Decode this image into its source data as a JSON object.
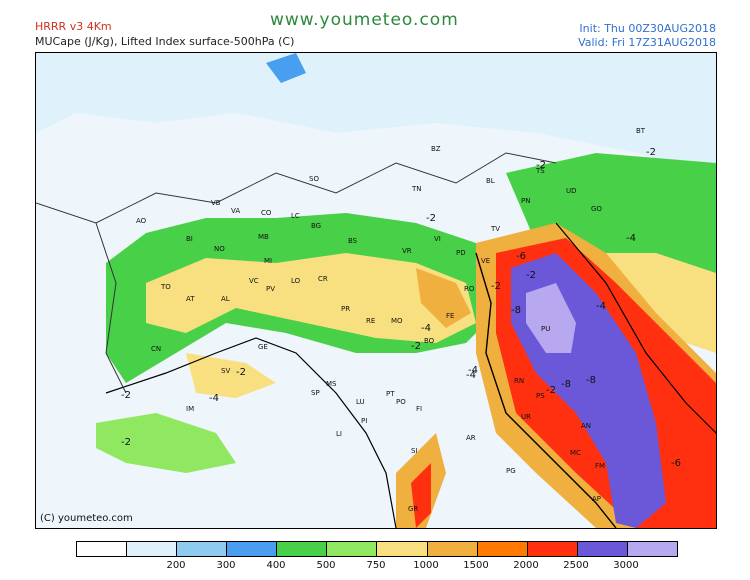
{
  "header": {
    "model": "HRRR v3 4Km",
    "parameter": "MUCape (J/Kg), Lifted Index surface-500hPa (C)",
    "site": "www.youmeteo.com",
    "init": "Init: Thu 00Z30AUG2018",
    "valid": "Valid: Fri 17Z31AUG2018"
  },
  "map": {
    "copyright": "(C) youmeteo.com",
    "province_labels": [
      "BZ",
      "SO",
      "TN",
      "BL",
      "PN",
      "UD",
      "GO",
      "VB",
      "VA",
      "CO",
      "LC",
      "BG",
      "BS",
      "BI",
      "NO",
      "MB",
      "MI",
      "VR",
      "VI",
      "TV",
      "PD",
      "VE",
      "RO",
      "FE",
      "BO",
      "MO",
      "RE",
      "PR",
      "CR",
      "LO",
      "PV",
      "AL",
      "AT",
      "TO",
      "CN",
      "SV",
      "GE",
      "IM",
      "SP",
      "MS",
      "LU",
      "PT",
      "PO",
      "FI",
      "PI",
      "LI",
      "SI",
      "AR",
      "PG",
      "PU",
      "AN",
      "RN",
      "PS",
      "UR",
      "MC",
      "FM",
      "AP",
      "GR",
      "AO",
      "TS",
      "VC",
      "BT"
    ],
    "li_labels": [
      "-2",
      "-2",
      "-2",
      "-2",
      "-4",
      "-6",
      "-2",
      "-4",
      "-8",
      "-2",
      "-4",
      "-2",
      "-2",
      "-4",
      "-4",
      "-2",
      "-2",
      "-8",
      "-8",
      "-6",
      "-4"
    ]
  },
  "legend": {
    "colors": [
      "#ffffff",
      "#dff2fb",
      "#8fcbf0",
      "#4a9ef0",
      "#48d048",
      "#90e860",
      "#f8e080",
      "#f0b040",
      "#ff7a00",
      "#ff3010",
      "#6a58d8",
      "#b8a8f0"
    ],
    "ticks": [
      "200",
      "300",
      "400",
      "500",
      "750",
      "1000",
      "1500",
      "2000",
      "2500",
      "3000"
    ]
  }
}
